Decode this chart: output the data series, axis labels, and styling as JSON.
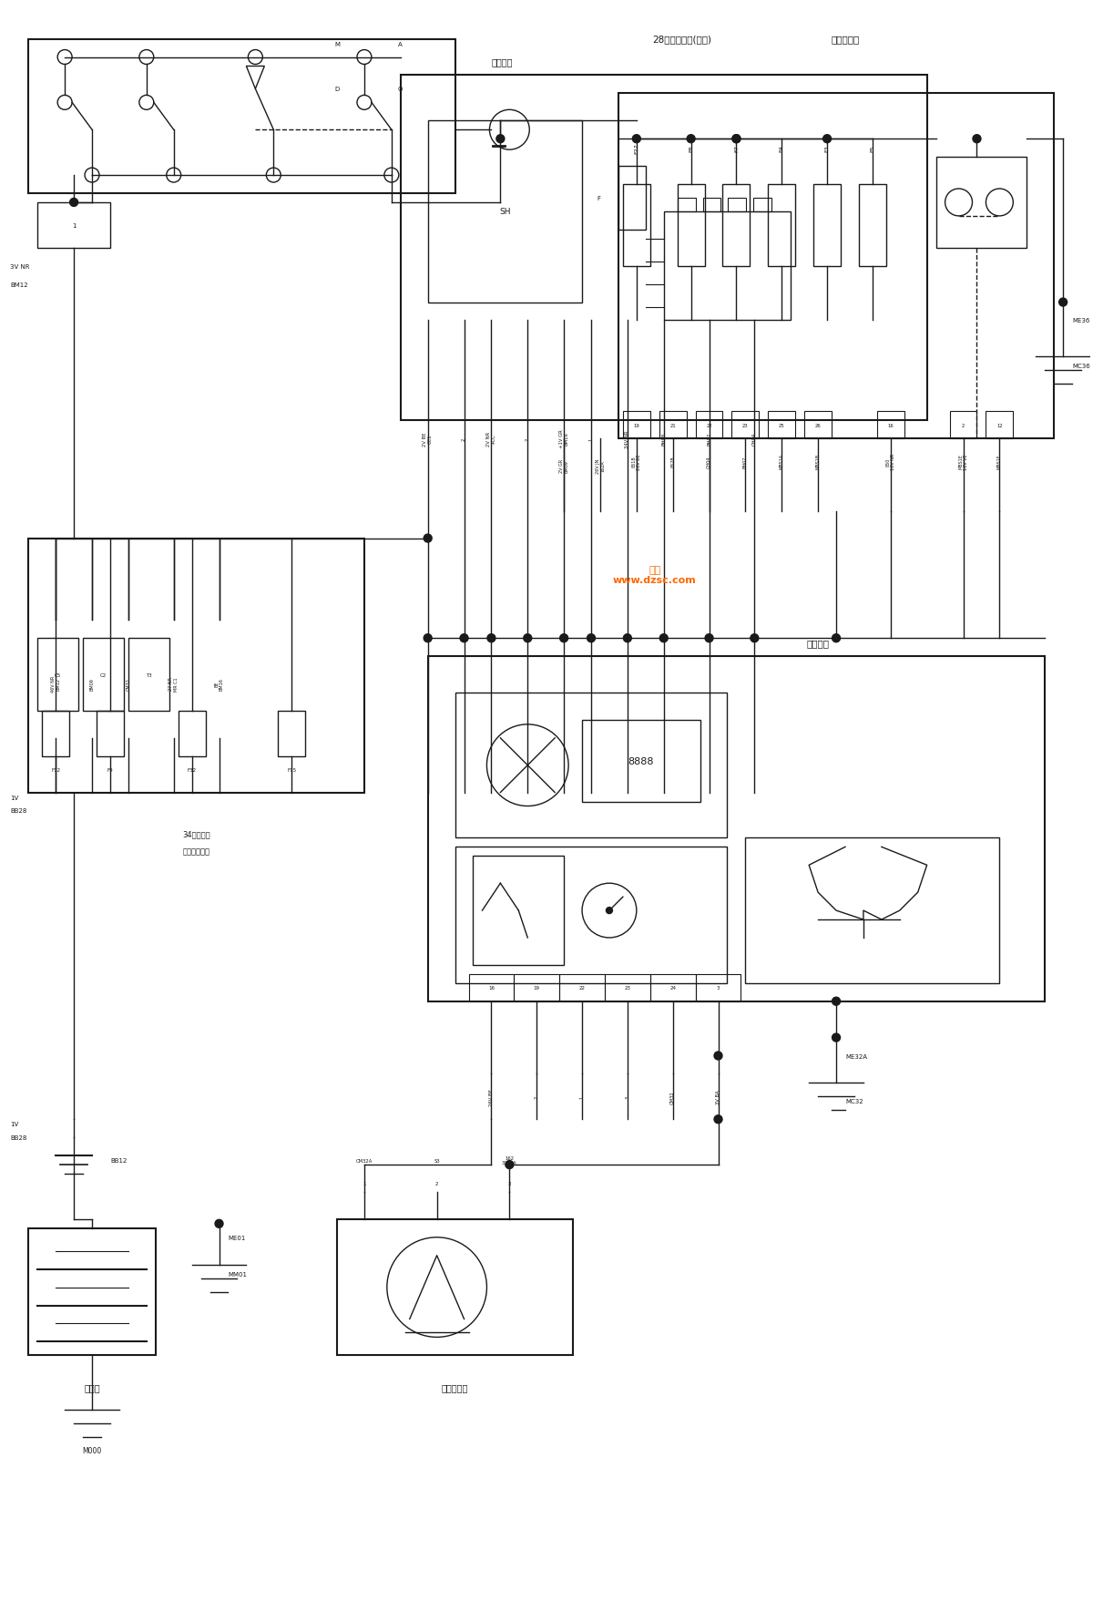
{
  "bg_color": "#ffffff",
  "line_color": "#1a1a1a",
  "watermark_color": "#FF6600",
  "labels": {
    "ignition": "点火开关",
    "fuse28": "28路熔断器盒(座舱)",
    "smart_box": "智能控制盒",
    "instrument": "组合仪表",
    "fuse34_1": "34路熔断器",
    "fuse34_2": "发动机控制盒",
    "battery": "蓄电池",
    "speed_sensor": "车速传感器",
    "watermark": "维库\nwww.dzsc.com",
    "bb12": "BB12",
    "m000": "M000",
    "me01": "ME01",
    "mm01": "MM01",
    "me36": "ME36",
    "mc36": "MC36",
    "me32a": "ME32A",
    "mc32": "MC32",
    "bb28_1": "1V\nBB28",
    "bb28_2": "1V\nBB28",
    "nr_bm12": "3V NR\nBM12",
    "sh": "SH",
    "f_label": "F"
  }
}
